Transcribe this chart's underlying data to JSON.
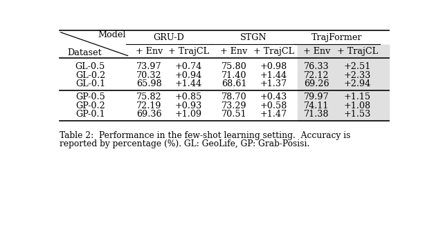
{
  "title_line1": "Table 2:  Performance in the few-shot learning setting.  Accuracy is",
  "title_line2": "reported by percentage (%). GL: GeoLife, GP: Grab-Posisi.",
  "rows": [
    [
      "GL-0.5",
      "73.97",
      "+0.74",
      "75.80",
      "+0.98",
      "76.33",
      "+2.51"
    ],
    [
      "GL-0.2",
      "70.32",
      "+0.94",
      "71.40",
      "+1.44",
      "72.12",
      "+2.33"
    ],
    [
      "GL-0.1",
      "65.98",
      "+1.44",
      "68.61",
      "+1.37",
      "69.26",
      "+2.94"
    ],
    [
      "GP-0.5",
      "75.82",
      "+0.85",
      "78.70",
      "+0.43",
      "79.97",
      "+1.15"
    ],
    [
      "GP-0.2",
      "72.19",
      "+0.93",
      "73.29",
      "+0.58",
      "74.11",
      "+1.08"
    ],
    [
      "GP-0.1",
      "69.36",
      "+1.09",
      "70.51",
      "+1.47",
      "71.38",
      "+1.53"
    ]
  ],
  "shaded_color": "#e0e0e0",
  "background_color": "#ffffff",
  "model_label": "Model",
  "dataset_label": "Dataset",
  "col_headers1": [
    "GRU-D",
    "STGN",
    "TrajFormer"
  ],
  "col_headers2": [
    "+Env",
    "+TrajCL",
    "+Env",
    "+TrajCL",
    "+Env",
    "+TrajCL"
  ]
}
